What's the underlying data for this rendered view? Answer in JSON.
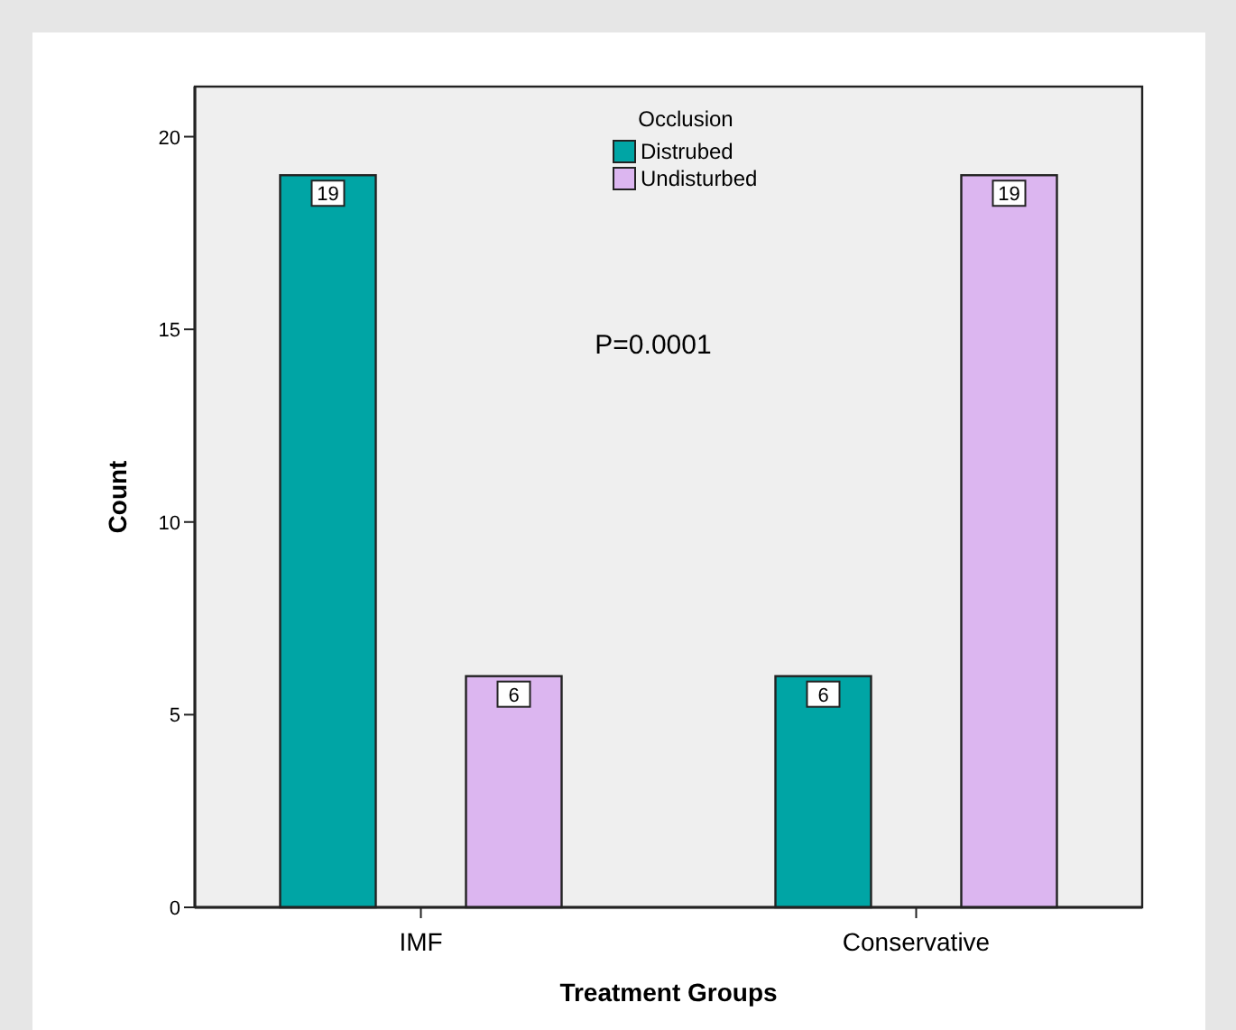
{
  "chart_data": {
    "type": "bar",
    "xlabel": "Treatment Groups",
    "ylabel": "Count",
    "legend_title": "Occlusion",
    "categories": [
      "IMF",
      "Conservative"
    ],
    "series": [
      {
        "name": "Distrubed",
        "color": "#00a5a5",
        "values": [
          19,
          6
        ]
      },
      {
        "name": "Undisturbed",
        "color": "#dcb6f0",
        "values": [
          6,
          19
        ]
      }
    ],
    "ylim": [
      0,
      21.3
    ],
    "yticks": [
      0,
      5,
      10,
      15,
      20
    ],
    "grid": false,
    "legend": "top",
    "data_labels": true,
    "annotations": [
      "P=0.0001"
    ]
  }
}
